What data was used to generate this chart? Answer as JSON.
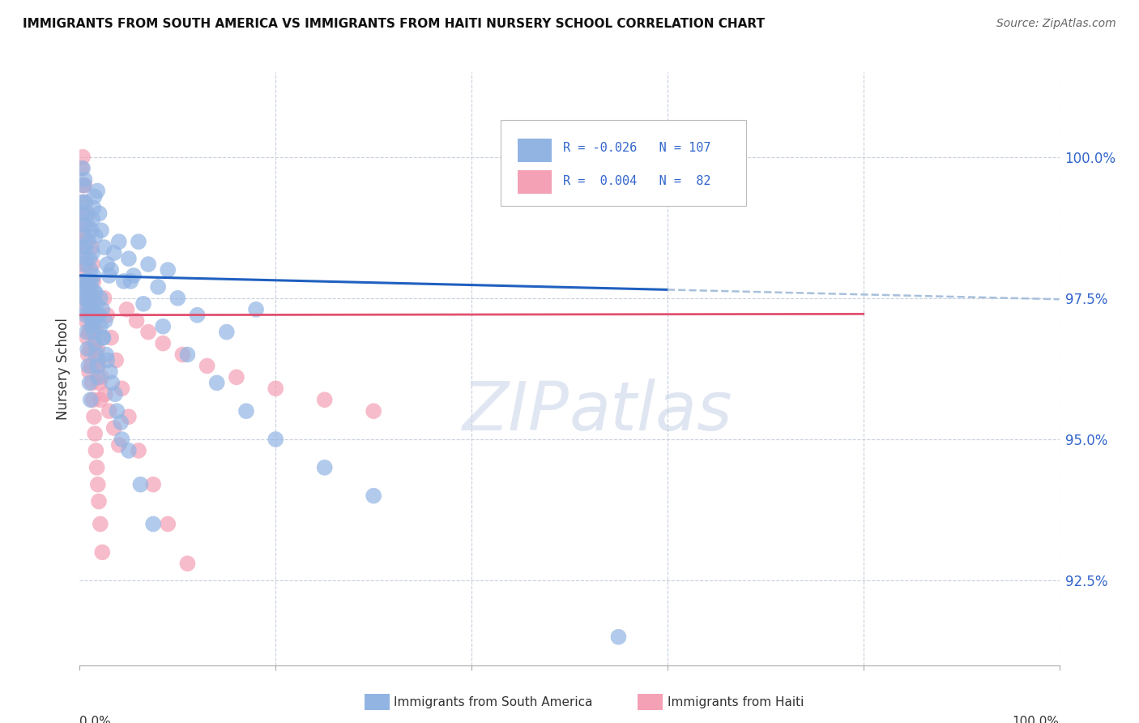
{
  "title": "IMMIGRANTS FROM SOUTH AMERICA VS IMMIGRANTS FROM HAITI NURSERY SCHOOL CORRELATION CHART",
  "source": "Source: ZipAtlas.com",
  "ylabel": "Nursery School",
  "legend_label1": "Immigrants from South America",
  "legend_label2": "Immigrants from Haiti",
  "legend_R1": "R = -0.026",
  "legend_N1": "N = 107",
  "legend_R2": "R =  0.004",
  "legend_N2": "N =  82",
  "color_blue": "#92b4e3",
  "color_pink": "#f4a0b5",
  "color_blue_line": "#2060c0",
  "color_pink_line": "#e05070",
  "color_dashed": "#a8c0dc",
  "ytick_labels": [
    "92.5%",
    "95.0%",
    "97.5%",
    "100.0%"
  ],
  "ytick_values": [
    92.5,
    95.0,
    97.5,
    100.0
  ],
  "ylim": [
    91.0,
    101.5
  ],
  "xlim": [
    0.0,
    100.0
  ],
  "watermark_zip": "ZIP",
  "watermark_atlas": "atlas",
  "blue_scatter_x": [
    0.3,
    0.4,
    0.5,
    0.6,
    0.7,
    0.8,
    0.9,
    1.0,
    1.1,
    1.2,
    1.3,
    1.4,
    1.5,
    1.6,
    1.8,
    2.0,
    2.2,
    2.5,
    2.8,
    3.0,
    0.5,
    0.6,
    0.7,
    0.8,
    0.9,
    1.0,
    1.1,
    1.2,
    1.3,
    1.4,
    1.5,
    1.7,
    1.9,
    2.1,
    2.3,
    2.6,
    3.2,
    3.5,
    4.0,
    4.5,
    5.0,
    5.5,
    6.0,
    7.0,
    8.0,
    9.0,
    10.0,
    12.0,
    15.0,
    18.0,
    0.2,
    0.3,
    0.4,
    0.5,
    0.6,
    0.7,
    0.8,
    0.9,
    1.0,
    1.1,
    1.2,
    1.3,
    1.4,
    1.6,
    2.0,
    2.4,
    2.8,
    3.3,
    3.8,
    4.3,
    5.2,
    6.5,
    8.5,
    11.0,
    14.0,
    17.0,
    20.0,
    25.0,
    30.0,
    0.15,
    0.25,
    0.35,
    0.45,
    0.55,
    0.65,
    0.75,
    0.85,
    0.95,
    1.05,
    1.15,
    1.25,
    1.35,
    1.45,
    1.55,
    1.65,
    1.75,
    1.85,
    2.1,
    2.4,
    2.7,
    3.1,
    3.6,
    4.2,
    5.0,
    6.2,
    7.5,
    55.0
  ],
  "blue_scatter_y": [
    99.8,
    99.5,
    99.6,
    99.2,
    99.0,
    98.8,
    98.5,
    98.2,
    98.0,
    97.8,
    98.9,
    99.1,
    99.3,
    98.6,
    99.4,
    99.0,
    98.7,
    98.4,
    98.1,
    97.9,
    97.7,
    97.5,
    97.3,
    97.6,
    97.8,
    97.4,
    97.2,
    97.0,
    97.1,
    97.3,
    97.6,
    97.4,
    97.2,
    97.5,
    97.3,
    97.1,
    98.0,
    98.3,
    98.5,
    97.8,
    98.2,
    97.9,
    98.5,
    98.1,
    97.7,
    98.0,
    97.5,
    97.2,
    96.9,
    97.3,
    98.4,
    98.1,
    97.8,
    97.5,
    97.2,
    96.9,
    96.6,
    96.3,
    96.0,
    95.7,
    98.7,
    98.3,
    97.9,
    97.6,
    97.2,
    96.8,
    96.4,
    96.0,
    95.5,
    95.0,
    97.8,
    97.4,
    97.0,
    96.5,
    96.0,
    95.5,
    95.0,
    94.5,
    94.0,
    99.2,
    99.0,
    98.8,
    98.6,
    98.4,
    98.2,
    97.8,
    97.6,
    97.4,
    97.7,
    97.5,
    97.3,
    97.1,
    96.9,
    96.7,
    96.5,
    96.3,
    96.1,
    97.0,
    96.8,
    96.5,
    96.2,
    95.8,
    95.3,
    94.8,
    94.2,
    93.5,
    91.5
  ],
  "pink_scatter_x": [
    0.2,
    0.3,
    0.4,
    0.5,
    0.6,
    0.7,
    0.8,
    0.9,
    1.0,
    1.1,
    1.2,
    1.3,
    1.4,
    1.5,
    1.6,
    1.7,
    1.8,
    1.9,
    2.0,
    2.1,
    0.25,
    0.35,
    0.45,
    0.55,
    0.65,
    0.75,
    0.85,
    0.95,
    1.05,
    1.15,
    1.25,
    1.35,
    1.45,
    1.55,
    1.65,
    1.75,
    1.85,
    1.95,
    2.1,
    2.3,
    2.5,
    2.8,
    3.2,
    3.7,
    4.3,
    5.0,
    6.0,
    7.5,
    9.0,
    11.0,
    0.15,
    0.25,
    0.35,
    0.45,
    0.55,
    0.65,
    0.75,
    0.85,
    0.95,
    1.05,
    1.2,
    1.4,
    1.6,
    1.9,
    2.2,
    2.6,
    3.0,
    3.5,
    4.0,
    4.8,
    5.8,
    7.0,
    8.5,
    10.5,
    13.0,
    16.0,
    20.0,
    25.0,
    30.0,
    0.3,
    0.5,
    0.8
  ],
  "pink_scatter_y": [
    99.8,
    99.5,
    99.2,
    98.8,
    98.5,
    98.1,
    97.8,
    97.5,
    97.2,
    96.9,
    98.4,
    98.1,
    97.8,
    97.5,
    97.2,
    96.9,
    96.6,
    96.3,
    96.0,
    95.7,
    99.0,
    98.7,
    98.4,
    98.1,
    97.8,
    97.5,
    97.2,
    96.9,
    96.6,
    96.3,
    96.0,
    95.7,
    95.4,
    95.1,
    94.8,
    94.5,
    94.2,
    93.9,
    93.5,
    93.0,
    97.5,
    97.2,
    96.8,
    96.4,
    95.9,
    95.4,
    94.8,
    94.2,
    93.5,
    92.8,
    98.6,
    98.3,
    98.0,
    97.7,
    97.4,
    97.1,
    96.8,
    96.5,
    96.2,
    97.6,
    97.3,
    97.0,
    96.7,
    96.4,
    96.1,
    95.8,
    95.5,
    95.2,
    94.9,
    97.3,
    97.1,
    96.9,
    96.7,
    96.5,
    96.3,
    96.1,
    95.9,
    95.7,
    95.5,
    100.0,
    99.5,
    99.0
  ],
  "blue_line_x": [
    0.0,
    60.0
  ],
  "blue_line_y": [
    97.9,
    97.65
  ],
  "dashed_line_x": [
    60.0,
    100.0
  ],
  "dashed_line_y": [
    97.65,
    97.48
  ],
  "pink_line_x": [
    0.0,
    80.0
  ],
  "pink_line_y": [
    97.2,
    97.22
  ]
}
